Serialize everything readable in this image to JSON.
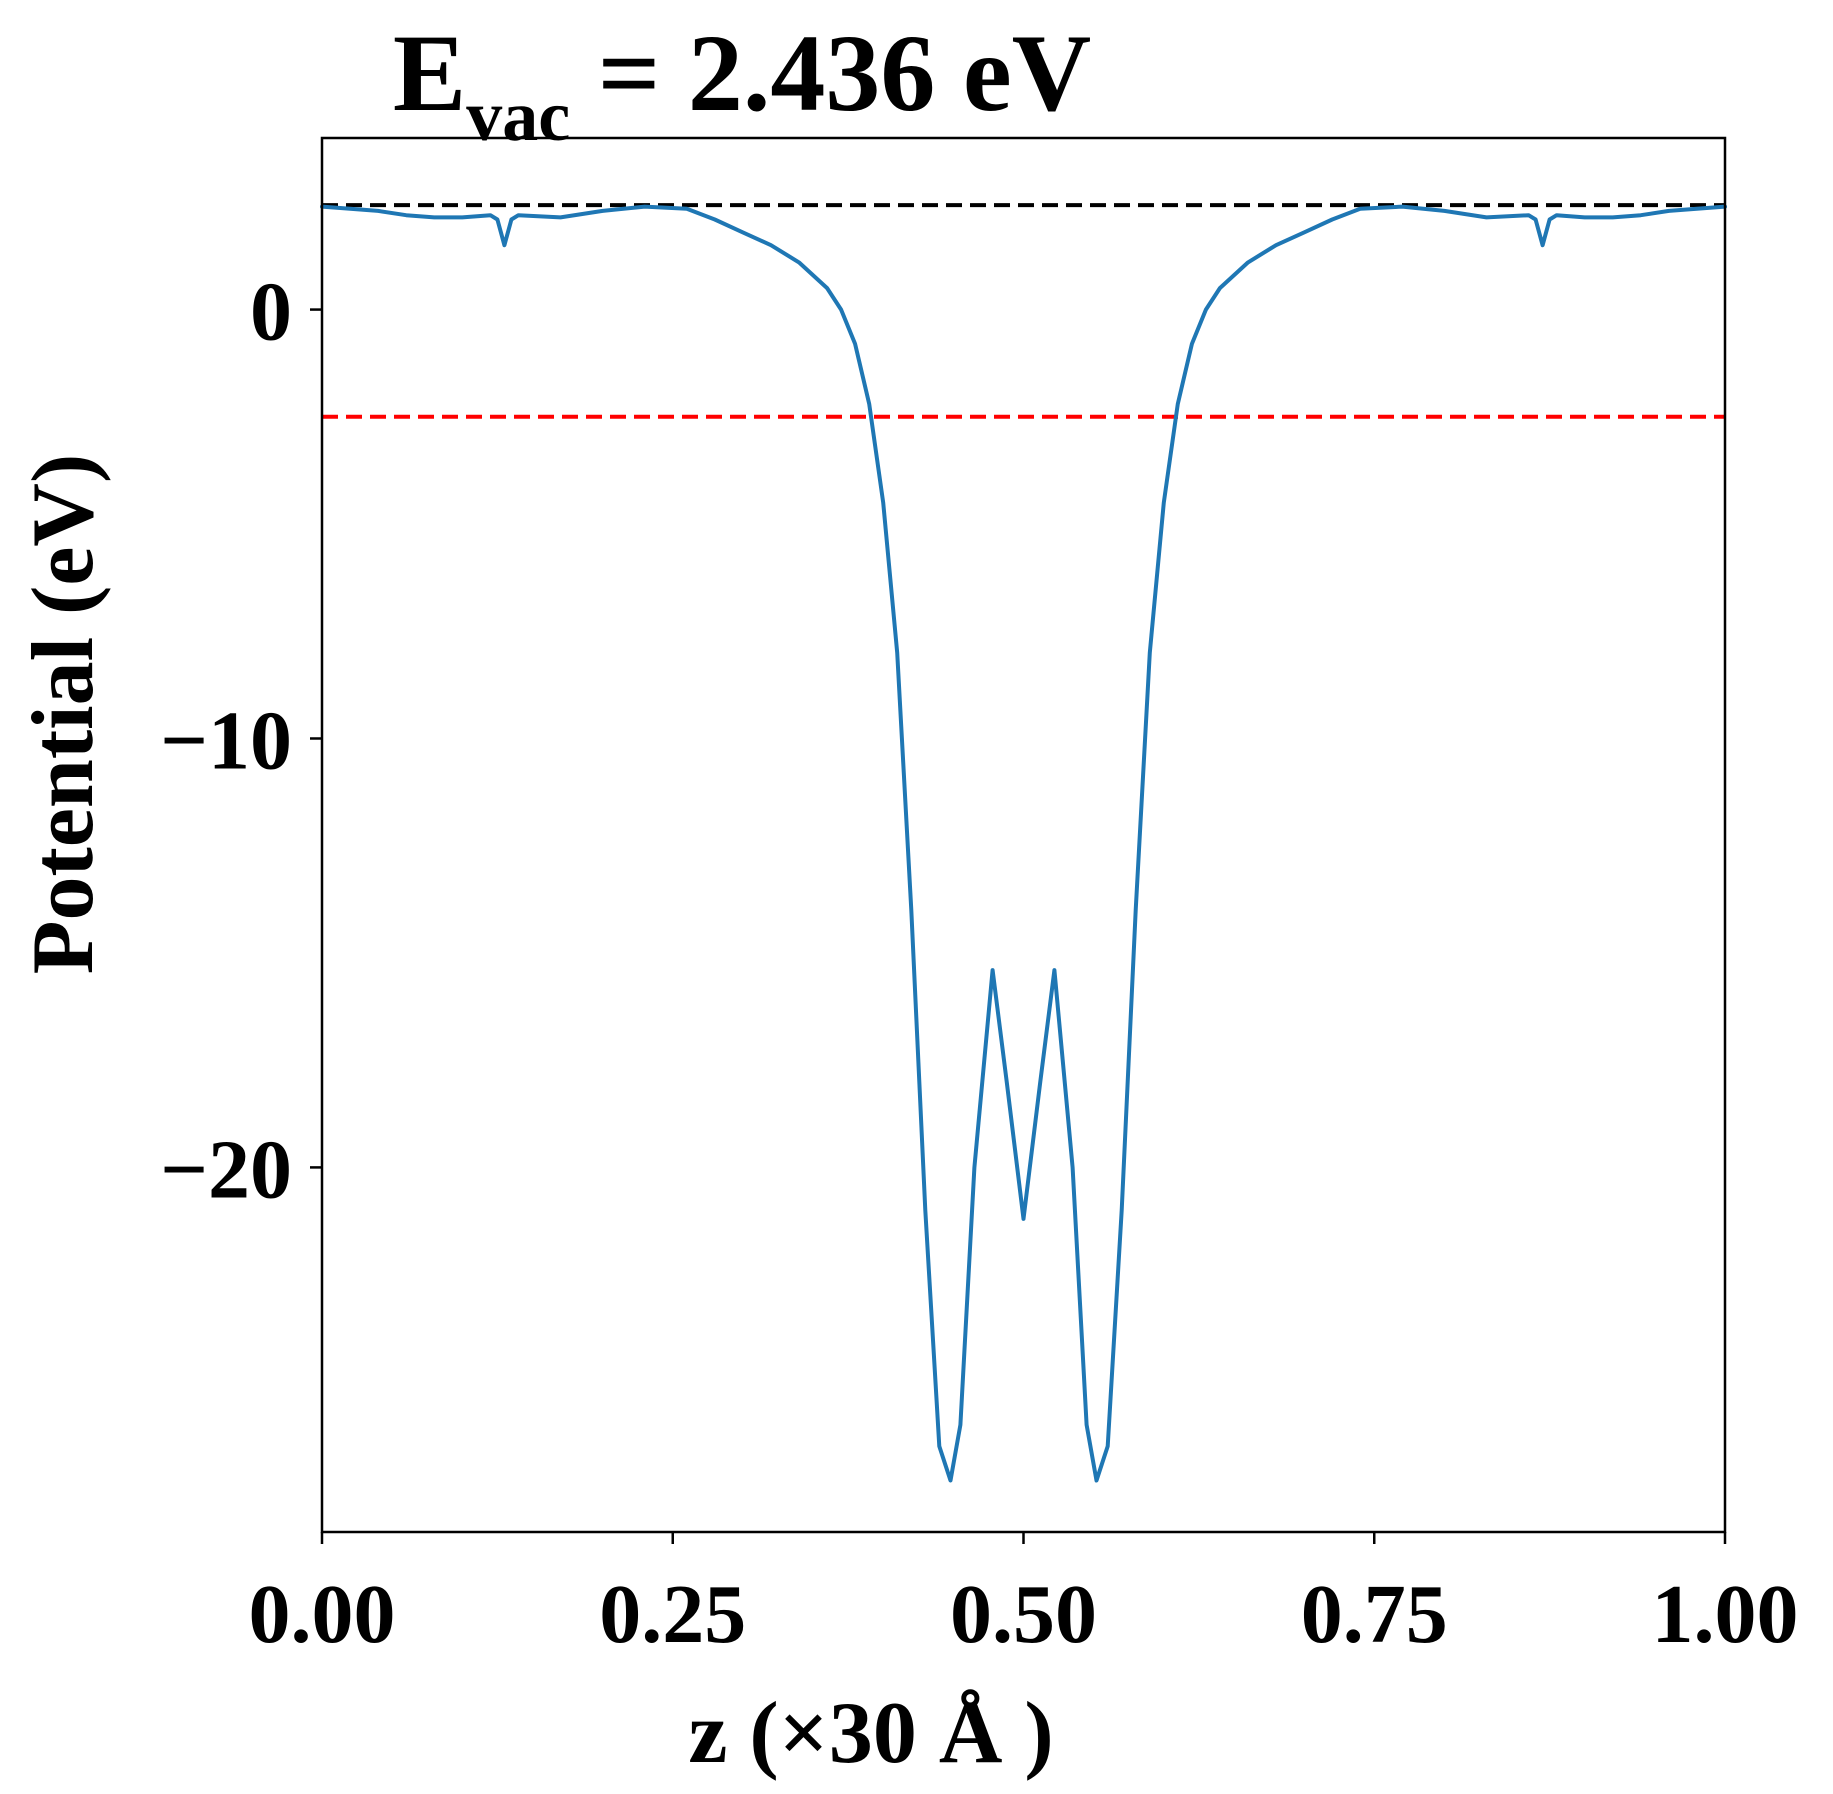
{
  "chart_data": {
    "type": "line",
    "title": {
      "prefix": "E",
      "subscript": "vac",
      "suffix": " = 2.436 eV"
    },
    "xlabel": "z (×30 Å )",
    "ylabel": "Potential (eV)",
    "xlim": [
      0.0,
      1.0
    ],
    "ylim": [
      -28.5,
      4.0
    ],
    "x_ticks": [
      0.0,
      0.25,
      0.5,
      0.75,
      1.0
    ],
    "x_tick_labels": [
      "0.00",
      "0.25",
      "0.50",
      "0.75",
      "1.00"
    ],
    "y_ticks": [
      0,
      -10,
      -20
    ],
    "y_tick_labels": [
      "0",
      "−10",
      "−20"
    ],
    "grid": false,
    "legend": "none",
    "reference_lines": [
      {
        "y": 2.436,
        "color": "#000000",
        "style": "dashed"
      },
      {
        "y": -2.5,
        "color": "#ff0000",
        "style": "dashed"
      }
    ],
    "series": [
      {
        "color": "#1f77b4",
        "points": [
          [
            0.0,
            2.4
          ],
          [
            0.02,
            2.35
          ],
          [
            0.04,
            2.3
          ],
          [
            0.06,
            2.2
          ],
          [
            0.08,
            2.15
          ],
          [
            0.1,
            2.15
          ],
          [
            0.12,
            2.2
          ],
          [
            0.125,
            2.1
          ],
          [
            0.13,
            1.5
          ],
          [
            0.135,
            2.1
          ],
          [
            0.14,
            2.2
          ],
          [
            0.17,
            2.15
          ],
          [
            0.2,
            2.3
          ],
          [
            0.23,
            2.4
          ],
          [
            0.26,
            2.35
          ],
          [
            0.28,
            2.1
          ],
          [
            0.3,
            1.8
          ],
          [
            0.32,
            1.5
          ],
          [
            0.34,
            1.1
          ],
          [
            0.36,
            0.5
          ],
          [
            0.37,
            0.0
          ],
          [
            0.38,
            -0.8
          ],
          [
            0.39,
            -2.2
          ],
          [
            0.4,
            -4.5
          ],
          [
            0.41,
            -8.0
          ],
          [
            0.42,
            -14.0
          ],
          [
            0.43,
            -21.0
          ],
          [
            0.44,
            -26.5
          ],
          [
            0.448,
            -27.3
          ],
          [
            0.455,
            -26.0
          ],
          [
            0.465,
            -20.0
          ],
          [
            0.478,
            -15.4
          ],
          [
            0.488,
            -18.0
          ],
          [
            0.5,
            -21.2
          ],
          [
            0.512,
            -18.0
          ],
          [
            0.522,
            -15.4
          ],
          [
            0.535,
            -20.0
          ],
          [
            0.545,
            -26.0
          ],
          [
            0.552,
            -27.3
          ],
          [
            0.56,
            -26.5
          ],
          [
            0.57,
            -21.0
          ],
          [
            0.58,
            -14.0
          ],
          [
            0.59,
            -8.0
          ],
          [
            0.6,
            -4.5
          ],
          [
            0.61,
            -2.2
          ],
          [
            0.62,
            -0.8
          ],
          [
            0.63,
            0.0
          ],
          [
            0.64,
            0.5
          ],
          [
            0.66,
            1.1
          ],
          [
            0.68,
            1.5
          ],
          [
            0.7,
            1.8
          ],
          [
            0.72,
            2.1
          ],
          [
            0.74,
            2.35
          ],
          [
            0.77,
            2.4
          ],
          [
            0.8,
            2.3
          ],
          [
            0.83,
            2.15
          ],
          [
            0.86,
            2.2
          ],
          [
            0.865,
            2.1
          ],
          [
            0.87,
            1.5
          ],
          [
            0.875,
            2.1
          ],
          [
            0.88,
            2.2
          ],
          [
            0.9,
            2.15
          ],
          [
            0.92,
            2.15
          ],
          [
            0.94,
            2.2
          ],
          [
            0.96,
            2.3
          ],
          [
            0.98,
            2.35
          ],
          [
            1.0,
            2.4
          ]
        ]
      }
    ]
  }
}
